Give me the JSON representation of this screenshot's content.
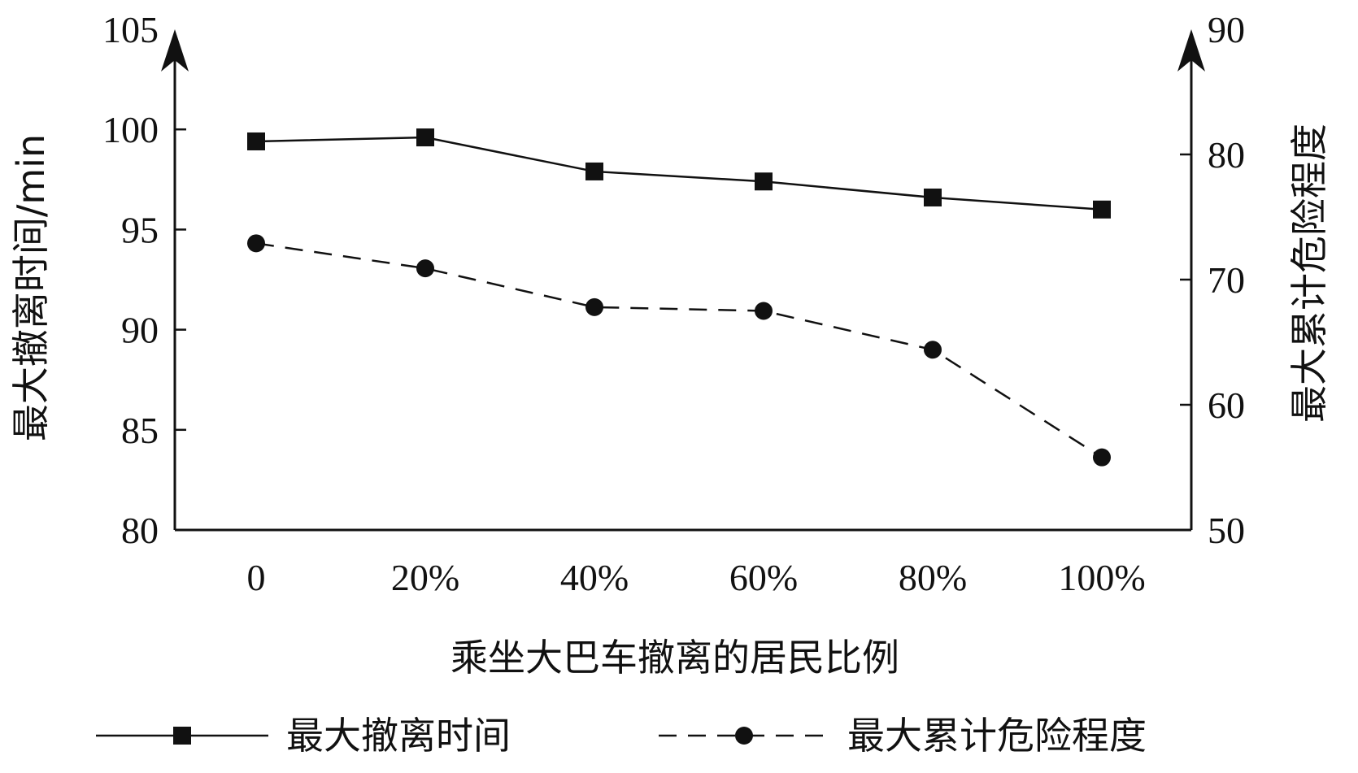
{
  "chart_data": {
    "type": "line",
    "categories": [
      "0",
      "20%",
      "40%",
      "60%",
      "80%",
      "100%"
    ],
    "xlabel": "乘坐大巴车撤离的居民比例",
    "y_left": {
      "label": "最大撤离时间/min",
      "ylim": [
        80,
        105
      ],
      "ticks": [
        80,
        85,
        90,
        95,
        100,
        105
      ]
    },
    "y_right": {
      "label": "最大累计危险程度",
      "ylim": [
        50,
        90
      ],
      "ticks": [
        50,
        60,
        70,
        80,
        90
      ]
    },
    "series": [
      {
        "name": "最大撤离时间",
        "axis": "left",
        "style": "solid",
        "marker": "square",
        "color": "#111111",
        "values": [
          99.4,
          99.6,
          97.9,
          97.4,
          96.6,
          96.0
        ]
      },
      {
        "name": "最大累计危险程度",
        "axis": "right",
        "style": "dashed",
        "marker": "circle",
        "color": "#111111",
        "values": [
          72.9,
          70.9,
          67.8,
          67.5,
          64.4,
          55.8
        ]
      }
    ],
    "grid": false,
    "legend_position": "bottom"
  }
}
